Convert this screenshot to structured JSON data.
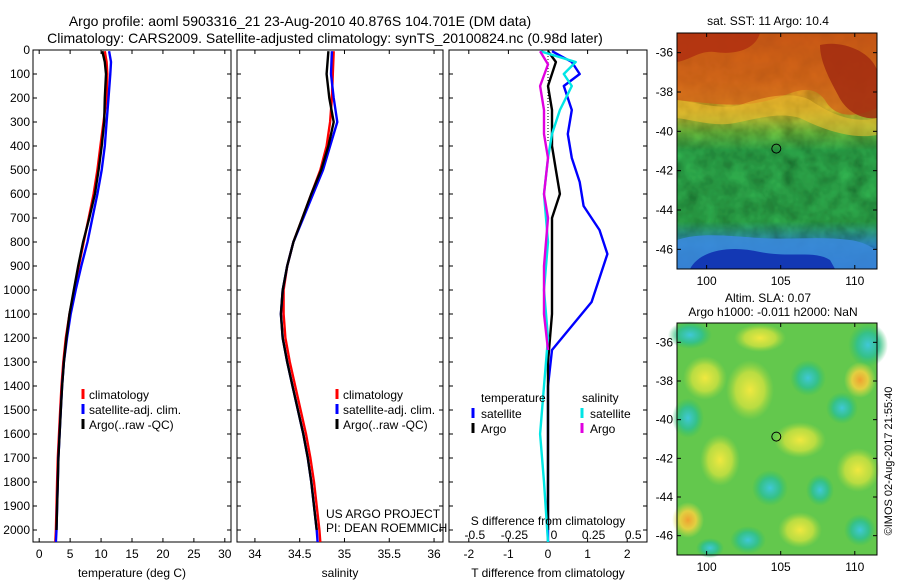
{
  "header": {
    "title_line1": "Argo profile: aoml 5903316_21 23-Aug-2010 40.876S 104.701E (DM data)",
    "title_line2": "Climatology: CARS2009. Satellite-adjusted climatology: synTS_20100824.nc (0.98d later)"
  },
  "credits": {
    "project": "US ARGO PROJECT",
    "pi": "PI: DEAN ROEMMICH",
    "timestamp": "©IMOS 02-Aug-2017 21:55:40"
  },
  "colors": {
    "climatology": "#ff0000",
    "satellite": "#0000ff",
    "argo": "#000000",
    "sal_satellite": "#00e5e5",
    "sal_argo": "#e000e0"
  },
  "chart_data": [
    {
      "type": "line",
      "id": "temperature-profile",
      "xlabel": "temperature (deg C)",
      "xlim": [
        -1,
        31
      ],
      "xticks": [
        0,
        5,
        10,
        15,
        20,
        25,
        30
      ],
      "ylim": [
        2050,
        0
      ],
      "yticks": [
        0,
        100,
        200,
        300,
        400,
        500,
        600,
        700,
        800,
        900,
        1000,
        1100,
        1200,
        1300,
        1400,
        1500,
        1600,
        1700,
        1800,
        1900,
        2000
      ],
      "legend": [
        "climatology",
        "satellite-adj. clim.",
        "Argo(..raw -QC)"
      ],
      "series": [
        {
          "name": "climatology",
          "color": "#ff0000",
          "points": [
            [
              10.6,
              5
            ],
            [
              10.9,
              50
            ],
            [
              11.0,
              100
            ],
            [
              10.9,
              200
            ],
            [
              10.4,
              300
            ],
            [
              9.9,
              400
            ],
            [
              9.4,
              500
            ],
            [
              8.8,
              600
            ],
            [
              8.0,
              700
            ],
            [
              7.2,
              800
            ],
            [
              6.4,
              900
            ],
            [
              5.7,
              1000
            ],
            [
              4.9,
              1100
            ],
            [
              4.3,
              1200
            ],
            [
              3.9,
              1300
            ],
            [
              3.6,
              1400
            ],
            [
              3.4,
              1500
            ],
            [
              3.2,
              1600
            ],
            [
              3.0,
              1700
            ],
            [
              2.9,
              1800
            ],
            [
              2.8,
              1900
            ],
            [
              2.7,
              2000
            ],
            [
              2.6,
              2050
            ]
          ]
        },
        {
          "name": "satellite-adj. clim.",
          "color": "#0000ff",
          "points": [
            [
              11.3,
              5
            ],
            [
              11.6,
              50
            ],
            [
              11.5,
              100
            ],
            [
              11.2,
              200
            ],
            [
              10.9,
              300
            ],
            [
              10.6,
              400
            ],
            [
              10.1,
              500
            ],
            [
              9.4,
              600
            ],
            [
              8.6,
              700
            ],
            [
              7.8,
              800
            ],
            [
              6.8,
              900
            ],
            [
              5.9,
              1000
            ],
            [
              5.1,
              1100
            ],
            [
              4.5,
              1200
            ],
            [
              4.0,
              1300
            ],
            [
              3.7,
              1400
            ],
            [
              3.5,
              1500
            ],
            [
              3.3,
              1600
            ],
            [
              3.1,
              1700
            ],
            [
              3.0,
              1800
            ],
            [
              2.9,
              1900
            ],
            [
              2.8,
              2000
            ],
            [
              2.7,
              2050
            ]
          ]
        },
        {
          "name": "Argo(..raw -QC)",
          "color": "#000000",
          "points": [
            [
              10.2,
              5
            ],
            [
              10.6,
              50
            ],
            [
              10.8,
              100
            ],
            [
              10.6,
              200
            ],
            [
              10.5,
              300
            ],
            [
              10.1,
              400
            ],
            [
              9.6,
              500
            ],
            [
              9.0,
              600
            ],
            [
              8.1,
              700
            ],
            [
              7.1,
              800
            ],
            [
              6.3,
              900
            ],
            [
              5.6,
              1000
            ],
            [
              4.9,
              1100
            ],
            [
              4.4,
              1200
            ],
            [
              4.0,
              1300
            ],
            [
              3.7,
              1400
            ],
            [
              3.5,
              1500
            ],
            [
              3.3,
              1600
            ],
            [
              3.1,
              1700
            ],
            [
              3.0,
              1800
            ],
            [
              2.9,
              1900
            ],
            [
              2.8,
              2000
            ]
          ]
        }
      ]
    },
    {
      "type": "line",
      "id": "salinity-profile",
      "xlabel": "salinity",
      "xlim": [
        33.8,
        36.1
      ],
      "xticks": [
        34,
        34.5,
        35,
        35.5,
        36
      ],
      "ylim": [
        2050,
        0
      ],
      "legend": [
        "climatology",
        "satellite-adj. clim.",
        "Argo(..raw -QC)"
      ],
      "series": [
        {
          "name": "climatology",
          "color": "#ff0000",
          "points": [
            [
              34.88,
              5
            ],
            [
              34.87,
              100
            ],
            [
              34.86,
              200
            ],
            [
              34.84,
              300
            ],
            [
              34.8,
              400
            ],
            [
              34.73,
              500
            ],
            [
              34.63,
              600
            ],
            [
              34.53,
              700
            ],
            [
              34.43,
              800
            ],
            [
              34.36,
              900
            ],
            [
              34.32,
              1000
            ],
            [
              34.32,
              1100
            ],
            [
              34.34,
              1200
            ],
            [
              34.39,
              1300
            ],
            [
              34.45,
              1400
            ],
            [
              34.51,
              1500
            ],
            [
              34.57,
              1600
            ],
            [
              34.62,
              1700
            ],
            [
              34.66,
              1800
            ],
            [
              34.69,
              1900
            ],
            [
              34.72,
              2000
            ],
            [
              34.73,
              2050
            ]
          ]
        },
        {
          "name": "satellite-adj. clim.",
          "color": "#0000ff",
          "points": [
            [
              34.86,
              5
            ],
            [
              34.85,
              100
            ],
            [
              34.88,
              200
            ],
            [
              34.92,
              300
            ],
            [
              34.84,
              400
            ],
            [
              34.76,
              500
            ],
            [
              34.65,
              600
            ],
            [
              34.54,
              700
            ],
            [
              34.43,
              800
            ],
            [
              34.36,
              900
            ],
            [
              34.31,
              1000
            ],
            [
              34.29,
              1100
            ],
            [
              34.31,
              1200
            ],
            [
              34.36,
              1300
            ],
            [
              34.42,
              1400
            ],
            [
              34.48,
              1500
            ],
            [
              34.54,
              1600
            ],
            [
              34.59,
              1700
            ],
            [
              34.63,
              1800
            ],
            [
              34.66,
              1900
            ],
            [
              34.69,
              2000
            ],
            [
              34.7,
              2050
            ]
          ]
        },
        {
          "name": "Argo(..raw -QC)",
          "color": "#000000",
          "points": [
            [
              34.82,
              5
            ],
            [
              34.8,
              100
            ],
            [
              34.83,
              200
            ],
            [
              34.88,
              300
            ],
            [
              34.82,
              400
            ],
            [
              34.74,
              500
            ],
            [
              34.63,
              600
            ],
            [
              34.53,
              700
            ],
            [
              34.43,
              800
            ],
            [
              34.36,
              900
            ],
            [
              34.31,
              1000
            ],
            [
              34.29,
              1100
            ],
            [
              34.31,
              1200
            ],
            [
              34.36,
              1300
            ],
            [
              34.42,
              1400
            ],
            [
              34.48,
              1500
            ],
            [
              34.54,
              1600
            ],
            [
              34.59,
              1700
            ],
            [
              34.63,
              1800
            ],
            [
              34.66,
              1900
            ],
            [
              34.69,
              2000
            ]
          ]
        }
      ]
    },
    {
      "type": "line",
      "id": "difference-profile",
      "xlabel": "T difference from climatology",
      "xlabel_top": "S difference from climatology",
      "xlim": [
        -2.5,
        2.5
      ],
      "xticks": [
        -2,
        -1,
        0,
        1,
        2
      ],
      "xticks_s_labels": [
        "-0.5",
        "-0.25",
        "0",
        "0.25",
        "0.5"
      ],
      "ylim": [
        2050,
        0
      ],
      "legend_groups": [
        {
          "title": "temperature",
          "items": [
            "satellite",
            "Argo"
          ]
        },
        {
          "title": "salinity",
          "items": [
            "satellite",
            "Argo"
          ]
        }
      ],
      "series": [
        {
          "name": "satellite",
          "group": "temperature",
          "color": "#0000ff",
          "points": [
            [
              0.1,
              5
            ],
            [
              0.6,
              50
            ],
            [
              0.8,
              100
            ],
            [
              0.4,
              150
            ],
            [
              0.6,
              250
            ],
            [
              0.5,
              350
            ],
            [
              0.6,
              450
            ],
            [
              0.8,
              550
            ],
            [
              0.9,
              650
            ],
            [
              1.3,
              750
            ],
            [
              1.5,
              850
            ],
            [
              1.3,
              950
            ],
            [
              1.1,
              1050
            ],
            [
              0.6,
              1150
            ],
            [
              0.1,
              1250
            ],
            [
              0.0,
              1400
            ],
            [
              0.0,
              2050
            ]
          ]
        },
        {
          "name": "Argo",
          "group": "temperature",
          "color": "#000000",
          "points": [
            [
              0.0,
              5
            ],
            [
              0.2,
              50
            ],
            [
              0.0,
              150
            ],
            [
              0.1,
              250
            ],
            [
              0.1,
              400
            ],
            [
              0.2,
              500
            ],
            [
              0.3,
              600
            ],
            [
              0.1,
              700
            ],
            [
              0.1,
              900
            ],
            [
              0.1,
              1100
            ],
            [
              0.0,
              1300
            ],
            [
              0.0,
              2000
            ]
          ]
        },
        {
          "name": "satellite",
          "group": "salinity",
          "color": "#00e5e5",
          "points": [
            [
              -0.2,
              5
            ],
            [
              0.7,
              50
            ],
            [
              0.4,
              100
            ],
            [
              0.6,
              150
            ],
            [
              0.3,
              250
            ],
            [
              0.1,
              350
            ],
            [
              0.0,
              450
            ],
            [
              -0.1,
              600
            ],
            [
              0.0,
              800
            ],
            [
              -0.1,
              1000
            ],
            [
              0.0,
              1200
            ],
            [
              -0.1,
              1400
            ],
            [
              -0.2,
              1600
            ],
            [
              -0.1,
              1800
            ],
            [
              0.0,
              2050
            ]
          ]
        },
        {
          "name": "Argo",
          "group": "salinity",
          "color": "#e000e0",
          "points": [
            [
              -0.2,
              5
            ],
            [
              0.0,
              60
            ],
            [
              -0.2,
              150
            ],
            [
              -0.1,
              250
            ],
            [
              -0.1,
              350
            ],
            [
              0.0,
              450
            ],
            [
              -0.1,
              600
            ],
            [
              0.0,
              700
            ],
            [
              -0.1,
              900
            ],
            [
              -0.1,
              1100
            ],
            [
              0.0,
              1250
            ]
          ]
        }
      ]
    },
    {
      "type": "heatmap",
      "id": "sst-map",
      "title": "sat. SST: 11  Argo: 10.4",
      "xlim": [
        98,
        111.5
      ],
      "ylim": [
        -47,
        -35
      ],
      "xticks": [
        100,
        105,
        110
      ],
      "yticks": [
        -36,
        -38,
        -40,
        -42,
        -44,
        -46
      ],
      "marker": {
        "lon": 104.7,
        "lat": -40.876
      }
    },
    {
      "type": "heatmap",
      "id": "sla-map",
      "title_line1": "Altim. SLA: 0.07",
      "title_line2": "Argo h1000: -0.011  h2000: NaN",
      "xlim": [
        98,
        111.5
      ],
      "ylim": [
        -47,
        -35
      ],
      "xticks": [
        100,
        105,
        110
      ],
      "yticks": [
        -36,
        -38,
        -40,
        -42,
        -44,
        -46
      ],
      "marker": {
        "lon": 104.7,
        "lat": -40.876
      }
    }
  ]
}
